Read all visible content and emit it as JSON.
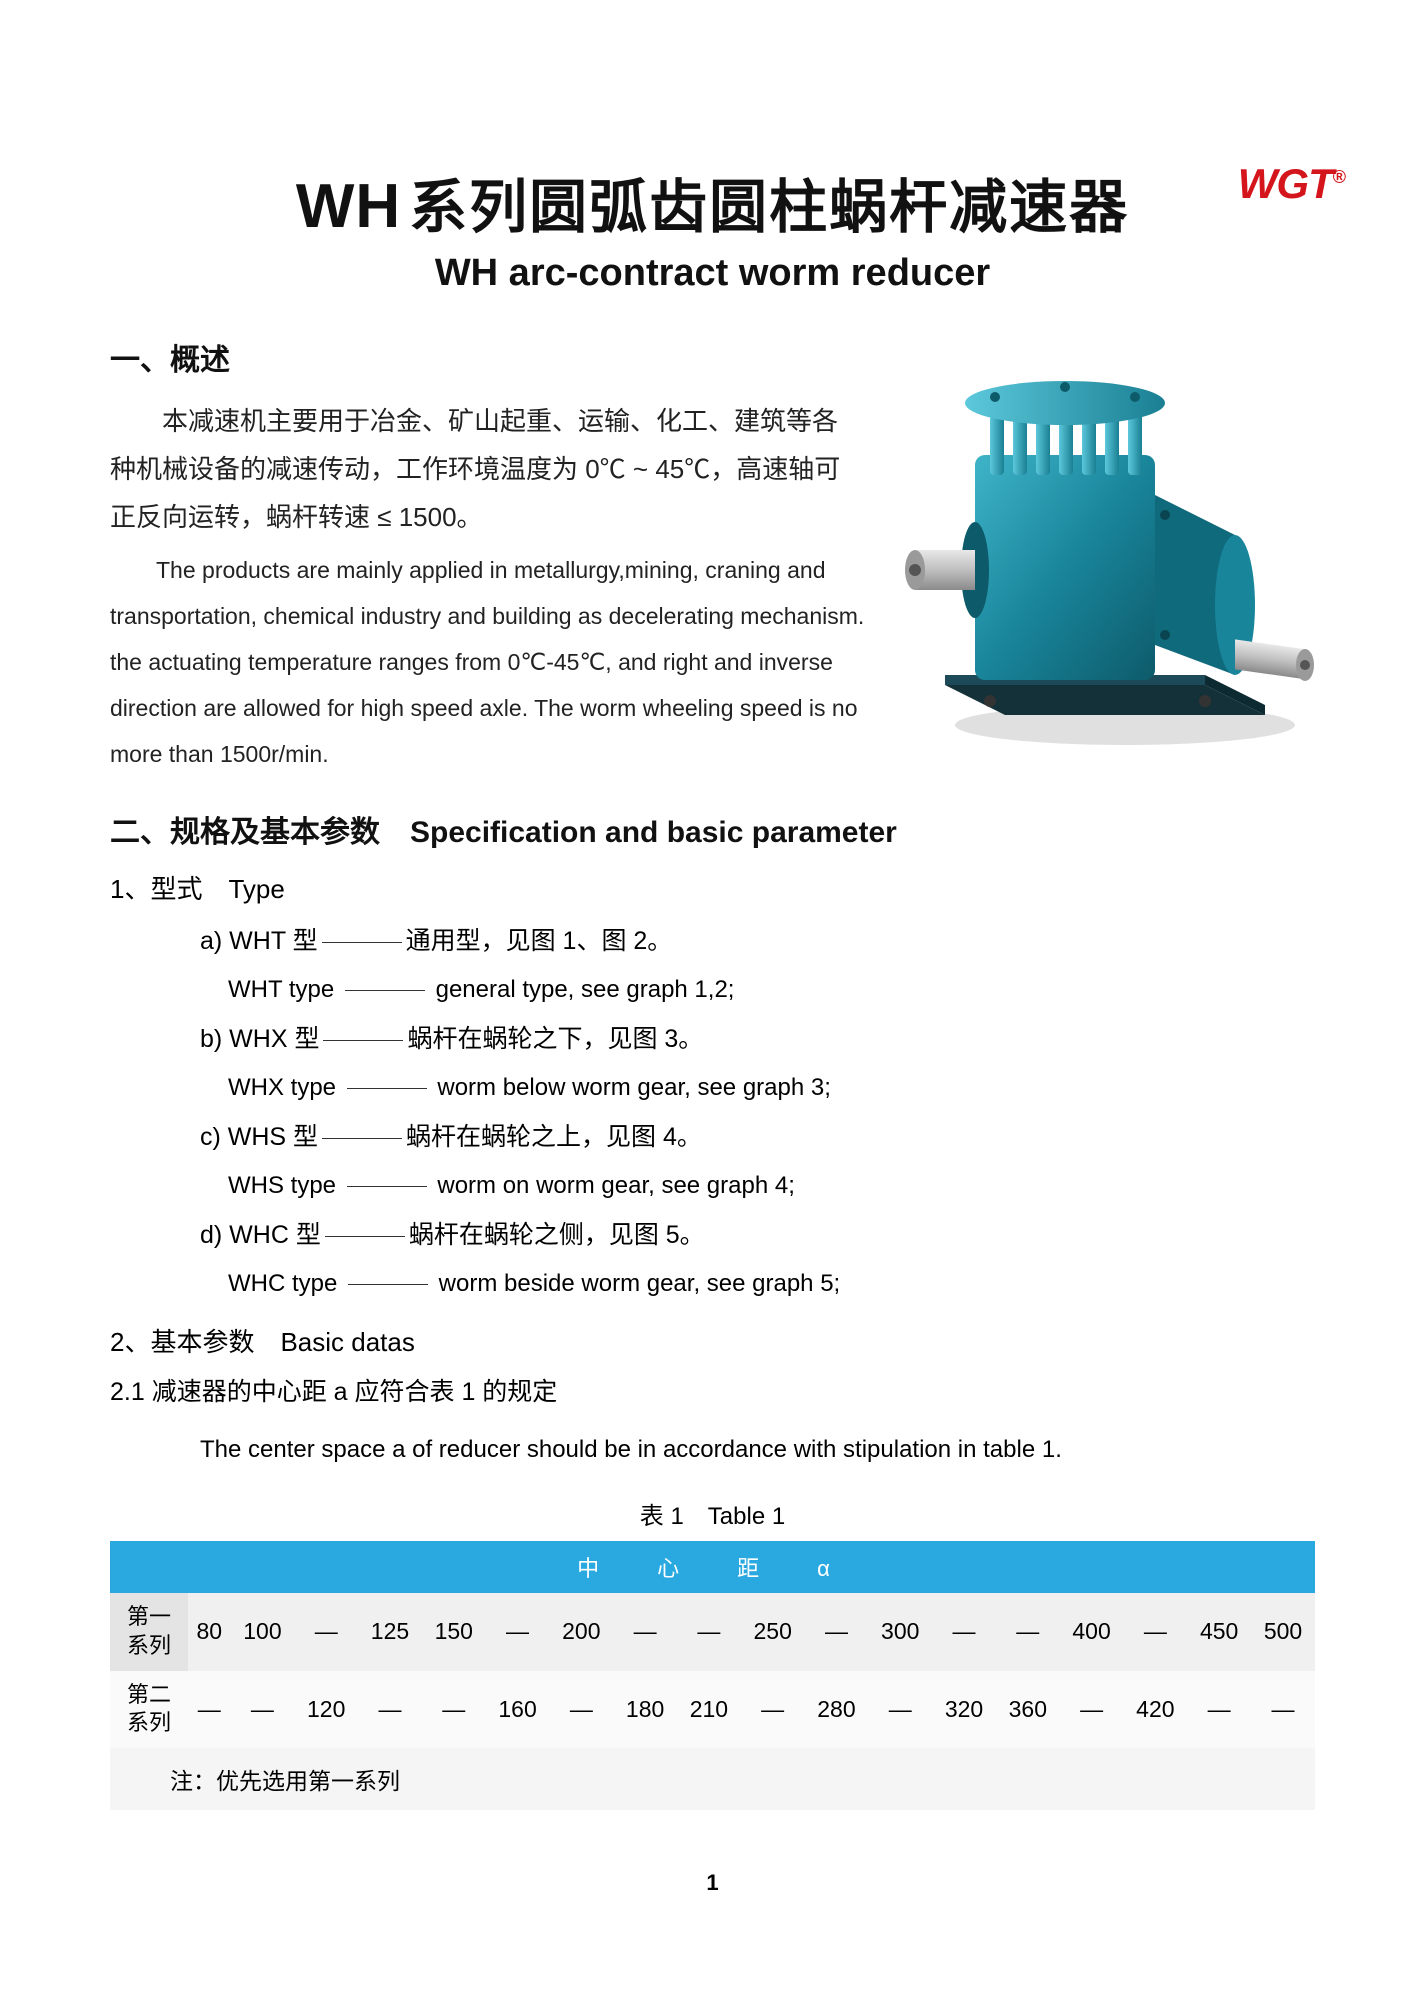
{
  "logo": {
    "text": "WGT",
    "mark": "®",
    "color": "#d4151c"
  },
  "title": {
    "prefix": "WH",
    "cn": "系列圆弧齿圆柱蜗杆减速器",
    "en": "WH arc-contract worm reducer"
  },
  "overview": {
    "heading": "一、概述",
    "cn": "本减速机主要用于冶金、矿山起重、运输、化工、建筑等各种机械设备的减速传动，工作环境温度为 0℃ ~ 45℃，高速轴可正反向运转，蜗杆转速 ≤ 1500。",
    "en": "The products are mainly applied in metallurgy,mining, craning and transportation, chemical industry and building as decelerating mechanism. the actuating temperature ranges from 0℃-45℃, and right and inverse direction are allowed for high speed axle. The worm wheeling speed is no more than 1500r/min."
  },
  "product_colors": {
    "body": "#19859b",
    "body_light": "#3fb4c9",
    "body_dark": "#0d5b6a",
    "shaft": "#bfbfbf",
    "shaft_dark": "#8a8a8a",
    "base": "#14313a"
  },
  "spec": {
    "heading_cn": "二、规格及基本参数",
    "heading_en": "Specification and basic parameter",
    "type_heading": "1、型式　Type",
    "types": [
      {
        "id": "a)",
        "label": "WHT 型",
        "cn": "通用型，见图 1、图 2。",
        "en_label": "WHT type",
        "en": "general type, see graph 1,2;"
      },
      {
        "id": "b)",
        "label": "WHX 型",
        "cn": "蜗杆在蜗轮之下，见图 3。",
        "en_label": "WHX type",
        "en": "worm below worm gear, see graph 3;"
      },
      {
        "id": "c)",
        "label": "WHS 型",
        "cn": "蜗杆在蜗轮之上，见图 4。",
        "en_label": "WHS type",
        "en": "worm on worm gear, see graph 4;"
      },
      {
        "id": "d)",
        "label": "WHC 型",
        "cn": "蜗杆在蜗轮之侧，见图 5。",
        "en_label": "WHC type",
        "en": "worm beside worm gear, see graph 5;"
      }
    ],
    "basic_heading": "2、基本参数　Basic datas",
    "center_cn": "2.1 减速器的中心距 a 应符合表 1 的规定",
    "center_en": "The center space a of reducer should be in accordance with stipulation in table 1."
  },
  "table1": {
    "caption": "表 1　Table 1",
    "header": "中　心　距　α",
    "row_labels": [
      "第一\n系列",
      "第二\n系列"
    ],
    "rows": [
      [
        "80",
        "100",
        "—",
        "125",
        "150",
        "—",
        "200",
        "—",
        "—",
        "250",
        "—",
        "300",
        "—",
        "—",
        "400",
        "—",
        "450",
        "500"
      ],
      [
        "—",
        "—",
        "120",
        "—",
        "—",
        "160",
        "—",
        "180",
        "210",
        "—",
        "280",
        "—",
        "320",
        "360",
        "—",
        "420",
        "—",
        "—"
      ]
    ],
    "note": "注：优先选用第一系列"
  },
  "page_number": "1"
}
